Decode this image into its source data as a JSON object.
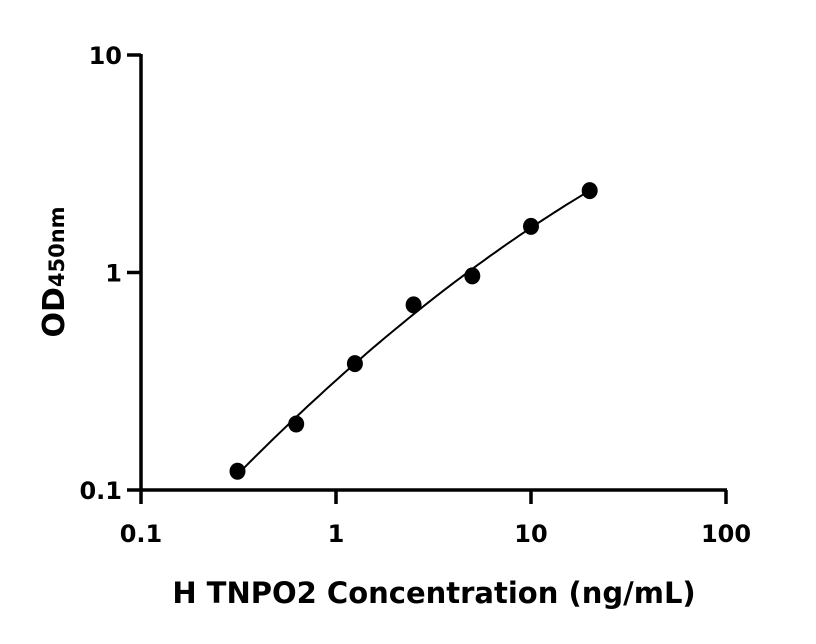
{
  "chart_data": {
    "type": "scatter",
    "xlabel": "H TNPO2 Concentration (ng/mL)",
    "ylabel_main": "OD",
    "ylabel_sub": "450nm",
    "x_scale": "log",
    "y_scale": "log",
    "xlim": [
      0.1,
      100
    ],
    "ylim": [
      0.1,
      10
    ],
    "x_ticks": [
      "0.1",
      "1",
      "10",
      "100"
    ],
    "y_ticks": [
      "0.1",
      "1",
      "10"
    ],
    "grid": false,
    "fit_curve": true,
    "color": "#000000",
    "series": [
      {
        "x": [
          0.3125,
          0.625,
          1.25,
          2.5,
          5,
          10,
          20
        ],
        "y": [
          0.122,
          0.201,
          0.381,
          0.71,
          0.965,
          1.63,
          2.38
        ]
      }
    ]
  }
}
